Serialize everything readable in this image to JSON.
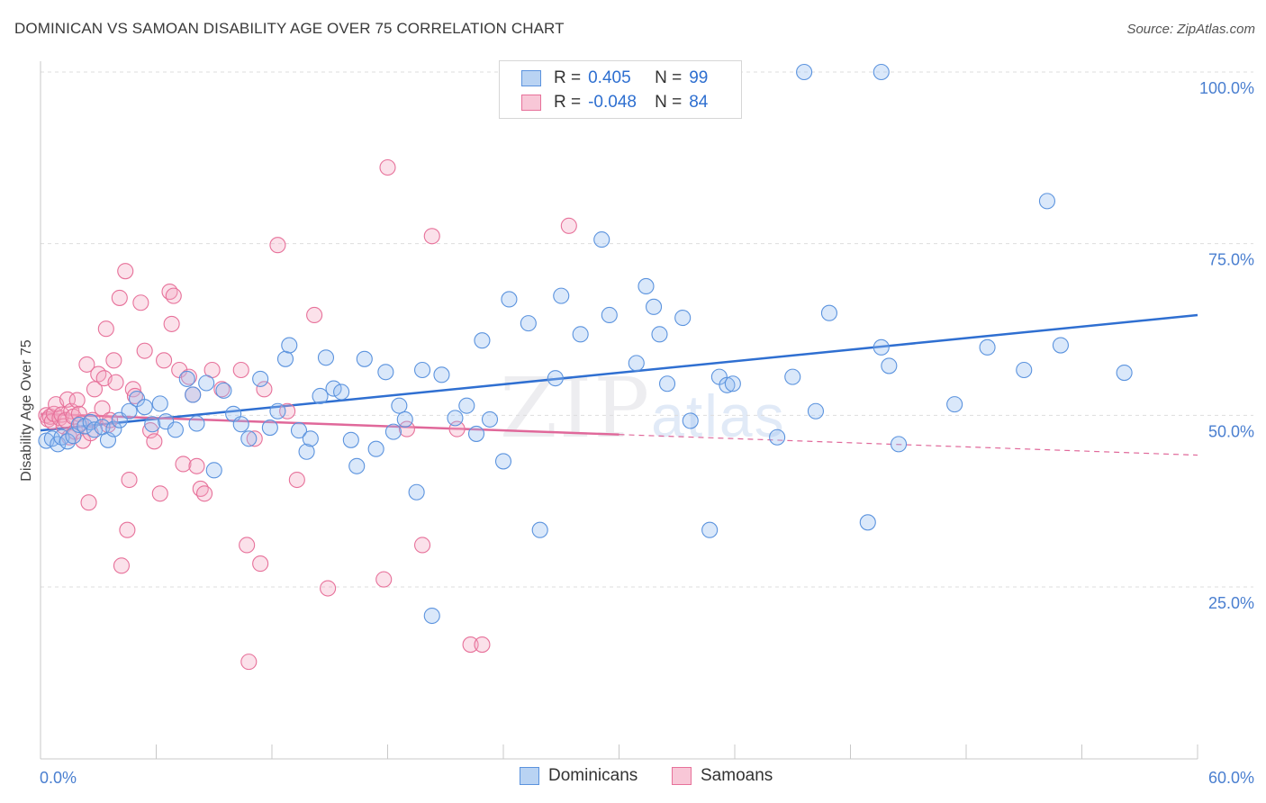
{
  "title": "DOMINICAN VS SAMOAN DISABILITY AGE OVER 75 CORRELATION CHART",
  "source": "Source: ZipAtlas.com",
  "watermark": {
    "zip": "ZIP",
    "atlas": "atlas"
  },
  "legend": {
    "r_label": "R =",
    "n_label": "N =",
    "rows": [
      {
        "name": "Dominicans",
        "r": "0.405",
        "n": "99",
        "color": "#5b93de",
        "fill": "#b9d3f3"
      },
      {
        "name": "Samoans",
        "r": "-0.048",
        "n": "84",
        "color": "#e7719a",
        "fill": "#f8c7d7"
      }
    ]
  },
  "chart_data": {
    "type": "scatter",
    "ylabel": "Disability Age Over 75",
    "xlabel": "",
    "xlim": [
      0,
      60
    ],
    "ylim": [
      0,
      105
    ],
    "x_tick_labels": [
      "0.0%",
      "60.0%"
    ],
    "y_tick_labels": [
      "25.0%",
      "50.0%",
      "75.0%",
      "100.0%"
    ],
    "y_ticks": [
      25,
      50,
      75,
      100
    ],
    "grid": true,
    "series": [
      {
        "name": "Dominicans",
        "color": "#5b93de",
        "trend": {
          "x": [
            0,
            60
          ],
          "y": [
            47.8,
            64.6
          ]
        },
        "points": [
          [
            0.3,
            46.3
          ],
          [
            0.6,
            46.6
          ],
          [
            0.9,
            45.8
          ],
          [
            1.1,
            46.8
          ],
          [
            1.4,
            46.2
          ],
          [
            1.7,
            47.0
          ],
          [
            2.0,
            48.6
          ],
          [
            2.3,
            48.4
          ],
          [
            2.6,
            49.0
          ],
          [
            2.8,
            47.9
          ],
          [
            3.2,
            48.3
          ],
          [
            3.5,
            46.4
          ],
          [
            3.8,
            48.0
          ],
          [
            4.1,
            49.3
          ],
          [
            4.6,
            50.6
          ],
          [
            5.0,
            52.4
          ],
          [
            5.4,
            51.2
          ],
          [
            5.8,
            48.7
          ],
          [
            6.2,
            51.7
          ],
          [
            6.5,
            49.1
          ],
          [
            7.0,
            47.9
          ],
          [
            7.6,
            55.3
          ],
          [
            7.9,
            53.0
          ],
          [
            8.1,
            48.8
          ],
          [
            8.6,
            54.7
          ],
          [
            9.0,
            42.0
          ],
          [
            9.5,
            53.6
          ],
          [
            10.0,
            50.2
          ],
          [
            10.4,
            48.7
          ],
          [
            10.8,
            46.6
          ],
          [
            11.4,
            55.3
          ],
          [
            11.9,
            48.2
          ],
          [
            12.3,
            50.6
          ],
          [
            12.7,
            58.2
          ],
          [
            12.9,
            60.2
          ],
          [
            13.4,
            47.8
          ],
          [
            13.8,
            44.7
          ],
          [
            14.0,
            46.6
          ],
          [
            14.5,
            52.8
          ],
          [
            14.8,
            58.4
          ],
          [
            15.2,
            53.9
          ],
          [
            15.6,
            53.4
          ],
          [
            16.1,
            46.4
          ],
          [
            16.4,
            42.6
          ],
          [
            16.8,
            58.2
          ],
          [
            17.4,
            45.1
          ],
          [
            17.9,
            56.3
          ],
          [
            18.3,
            47.6
          ],
          [
            18.6,
            51.4
          ],
          [
            18.9,
            49.4
          ],
          [
            19.5,
            38.8
          ],
          [
            19.8,
            56.6
          ],
          [
            20.3,
            20.8
          ],
          [
            20.8,
            55.9
          ],
          [
            21.5,
            49.6
          ],
          [
            22.1,
            51.4
          ],
          [
            22.6,
            47.3
          ],
          [
            22.9,
            60.9
          ],
          [
            23.3,
            49.4
          ],
          [
            24.0,
            43.3
          ],
          [
            24.3,
            66.9
          ],
          [
            25.3,
            63.4
          ],
          [
            25.9,
            33.3
          ],
          [
            26.7,
            55.4
          ],
          [
            27.0,
            67.4
          ],
          [
            28.0,
            61.8
          ],
          [
            29.1,
            75.6
          ],
          [
            29.5,
            64.6
          ],
          [
            30.9,
            57.6
          ],
          [
            31.4,
            68.8
          ],
          [
            31.8,
            65.8
          ],
          [
            32.1,
            61.8
          ],
          [
            32.5,
            54.6
          ],
          [
            33.3,
            64.2
          ],
          [
            33.7,
            49.2
          ],
          [
            34.7,
            33.3
          ],
          [
            35.2,
            55.6
          ],
          [
            35.6,
            54.4
          ],
          [
            35.9,
            54.6
          ],
          [
            38.2,
            46.8
          ],
          [
            39.0,
            55.6
          ],
          [
            39.6,
            100.0
          ],
          [
            40.2,
            50.6
          ],
          [
            40.9,
            64.9
          ],
          [
            42.9,
            34.4
          ],
          [
            43.6,
            59.9
          ],
          [
            43.6,
            100.0
          ],
          [
            44.0,
            57.2
          ],
          [
            44.5,
            45.8
          ],
          [
            47.4,
            51.6
          ],
          [
            49.1,
            59.9
          ],
          [
            51.0,
            56.6
          ],
          [
            52.2,
            81.2
          ],
          [
            52.9,
            60.2
          ],
          [
            56.2,
            56.2
          ]
        ]
      },
      {
        "name": "Samoans",
        "color": "#e7719a",
        "trend": {
          "x": [
            0,
            60
          ],
          "y": [
            50.2,
            44.2
          ],
          "solid_until": 30
        },
        "points": [
          [
            0.3,
            50.0
          ],
          [
            0.4,
            49.4
          ],
          [
            0.5,
            49.8
          ],
          [
            0.6,
            49.1
          ],
          [
            0.7,
            50.2
          ],
          [
            0.8,
            51.6
          ],
          [
            1.0,
            49.6
          ],
          [
            1.1,
            50.1
          ],
          [
            1.2,
            48.4
          ],
          [
            1.3,
            49.3
          ],
          [
            1.4,
            52.3
          ],
          [
            1.5,
            46.8
          ],
          [
            1.6,
            50.6
          ],
          [
            1.7,
            49.8
          ],
          [
            1.8,
            47.6
          ],
          [
            1.9,
            52.2
          ],
          [
            2.0,
            50.2
          ],
          [
            2.1,
            48.8
          ],
          [
            2.2,
            46.3
          ],
          [
            2.4,
            57.4
          ],
          [
            2.5,
            37.3
          ],
          [
            2.6,
            47.4
          ],
          [
            2.7,
            49.3
          ],
          [
            2.8,
            53.8
          ],
          [
            3.0,
            56.0
          ],
          [
            3.2,
            51.0
          ],
          [
            3.3,
            55.4
          ],
          [
            3.4,
            62.6
          ],
          [
            3.5,
            48.6
          ],
          [
            3.6,
            49.3
          ],
          [
            3.8,
            58.0
          ],
          [
            3.9,
            54.8
          ],
          [
            4.1,
            67.1
          ],
          [
            4.2,
            28.1
          ],
          [
            4.4,
            71.0
          ],
          [
            4.5,
            33.3
          ],
          [
            4.6,
            40.6
          ],
          [
            4.8,
            53.8
          ],
          [
            4.9,
            52.8
          ],
          [
            5.2,
            66.4
          ],
          [
            5.4,
            59.4
          ],
          [
            5.7,
            47.8
          ],
          [
            5.9,
            46.2
          ],
          [
            6.2,
            38.6
          ],
          [
            6.4,
            58.0
          ],
          [
            6.7,
            68.0
          ],
          [
            6.8,
            63.3
          ],
          [
            6.9,
            67.4
          ],
          [
            7.2,
            56.6
          ],
          [
            7.4,
            42.9
          ],
          [
            7.7,
            55.6
          ],
          [
            7.9,
            53.0
          ],
          [
            8.1,
            42.6
          ],
          [
            8.3,
            39.3
          ],
          [
            8.5,
            38.6
          ],
          [
            8.9,
            56.6
          ],
          [
            9.4,
            53.8
          ],
          [
            10.4,
            56.6
          ],
          [
            10.7,
            31.1
          ],
          [
            10.8,
            14.1
          ],
          [
            11.1,
            46.6
          ],
          [
            11.4,
            28.4
          ],
          [
            11.6,
            53.8
          ],
          [
            12.3,
            74.8
          ],
          [
            12.8,
            50.6
          ],
          [
            13.3,
            40.6
          ],
          [
            14.2,
            64.6
          ],
          [
            14.9,
            24.8
          ],
          [
            17.8,
            26.1
          ],
          [
            18.0,
            86.1
          ],
          [
            19.0,
            48.0
          ],
          [
            19.8,
            31.1
          ],
          [
            20.3,
            76.1
          ],
          [
            21.6,
            48.0
          ],
          [
            22.3,
            16.6
          ],
          [
            22.9,
            16.6
          ],
          [
            27.4,
            77.6
          ]
        ]
      }
    ]
  }
}
